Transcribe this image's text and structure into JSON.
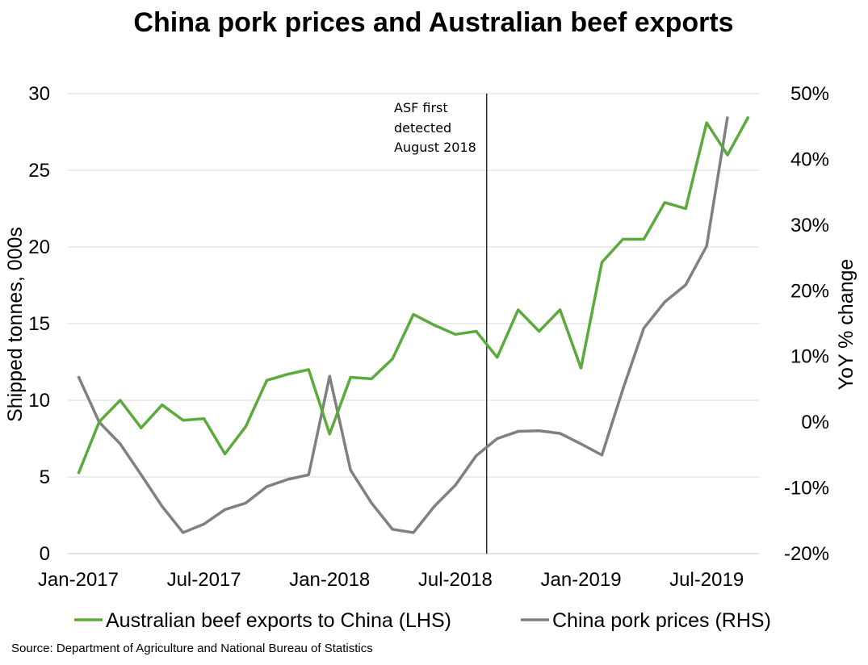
{
  "chart_data": {
    "type": "line",
    "title": "China pork prices and Australian beef exports",
    "source": "Source: Department of Agriculture and National Bureau of Statistics",
    "x": [
      "Jan-2017",
      "Feb-2017",
      "Mar-2017",
      "Apr-2017",
      "May-2017",
      "Jun-2017",
      "Jul-2017",
      "Aug-2017",
      "Sep-2017",
      "Oct-2017",
      "Nov-2017",
      "Dec-2017",
      "Jan-2018",
      "Feb-2018",
      "Mar-2018",
      "Apr-2018",
      "May-2018",
      "Jun-2018",
      "Jul-2018",
      "Aug-2018",
      "Sep-2018",
      "Oct-2018",
      "Nov-2018",
      "Dec-2018",
      "Jan-2019",
      "Feb-2019",
      "Mar-2019",
      "Apr-2019",
      "May-2019",
      "Jun-2019",
      "Jul-2019",
      "Aug-2019",
      "Sep-2019"
    ],
    "x_tick_labels": [
      "Jan-2017",
      "Jul-2017",
      "Jan-2018",
      "Jul-2018",
      "Jan-2019",
      "Jul-2019"
    ],
    "y_left": {
      "label": "Shipped tonnes, 000s",
      "ylim": [
        0,
        30
      ],
      "ticks": [
        "0",
        "5",
        "10",
        "15",
        "20",
        "25",
        "30"
      ]
    },
    "y_right": {
      "label": "YoY % change",
      "ylim": [
        -20,
        50
      ],
      "ticks": [
        "-20%",
        "-10%",
        "0%",
        "10%",
        "20%",
        "30%",
        "40%",
        "50%"
      ]
    },
    "grid": true,
    "legend_position": "bottom",
    "series": [
      {
        "name": "Australian beef exports to China (LHS)",
        "axis": "left",
        "color": "#5aaa3c",
        "values": [
          5.2,
          8.6,
          10.0,
          8.2,
          9.7,
          8.7,
          8.8,
          6.5,
          8.3,
          11.3,
          11.7,
          12.0,
          7.8,
          11.5,
          11.4,
          12.7,
          15.6,
          14.9,
          14.3,
          14.5,
          12.8,
          15.9,
          14.5,
          15.9,
          12.1,
          19.0,
          20.5,
          20.5,
          22.9,
          22.5,
          28.1,
          26.0,
          28.5
        ]
      },
      {
        "name": "China pork prices (RHS)",
        "axis": "right",
        "color": "#808080",
        "values": [
          7.0,
          0.0,
          -3.3,
          -8.0,
          -12.8,
          -16.8,
          -15.5,
          -13.3,
          -12.3,
          -9.8,
          -8.7,
          -8.0,
          7.0,
          -7.3,
          -12.3,
          -16.3,
          -16.8,
          -12.8,
          -9.6,
          -5.1,
          -2.5,
          -1.4,
          -1.3,
          -1.7,
          -3.3,
          -5.0,
          5.0,
          14.3,
          18.3,
          20.9,
          26.8,
          46.5,
          null
        ]
      }
    ],
    "annotations": [
      {
        "x": "Aug-2018",
        "lines": [
          "ASF first",
          "detected",
          "August 2018"
        ]
      }
    ]
  }
}
